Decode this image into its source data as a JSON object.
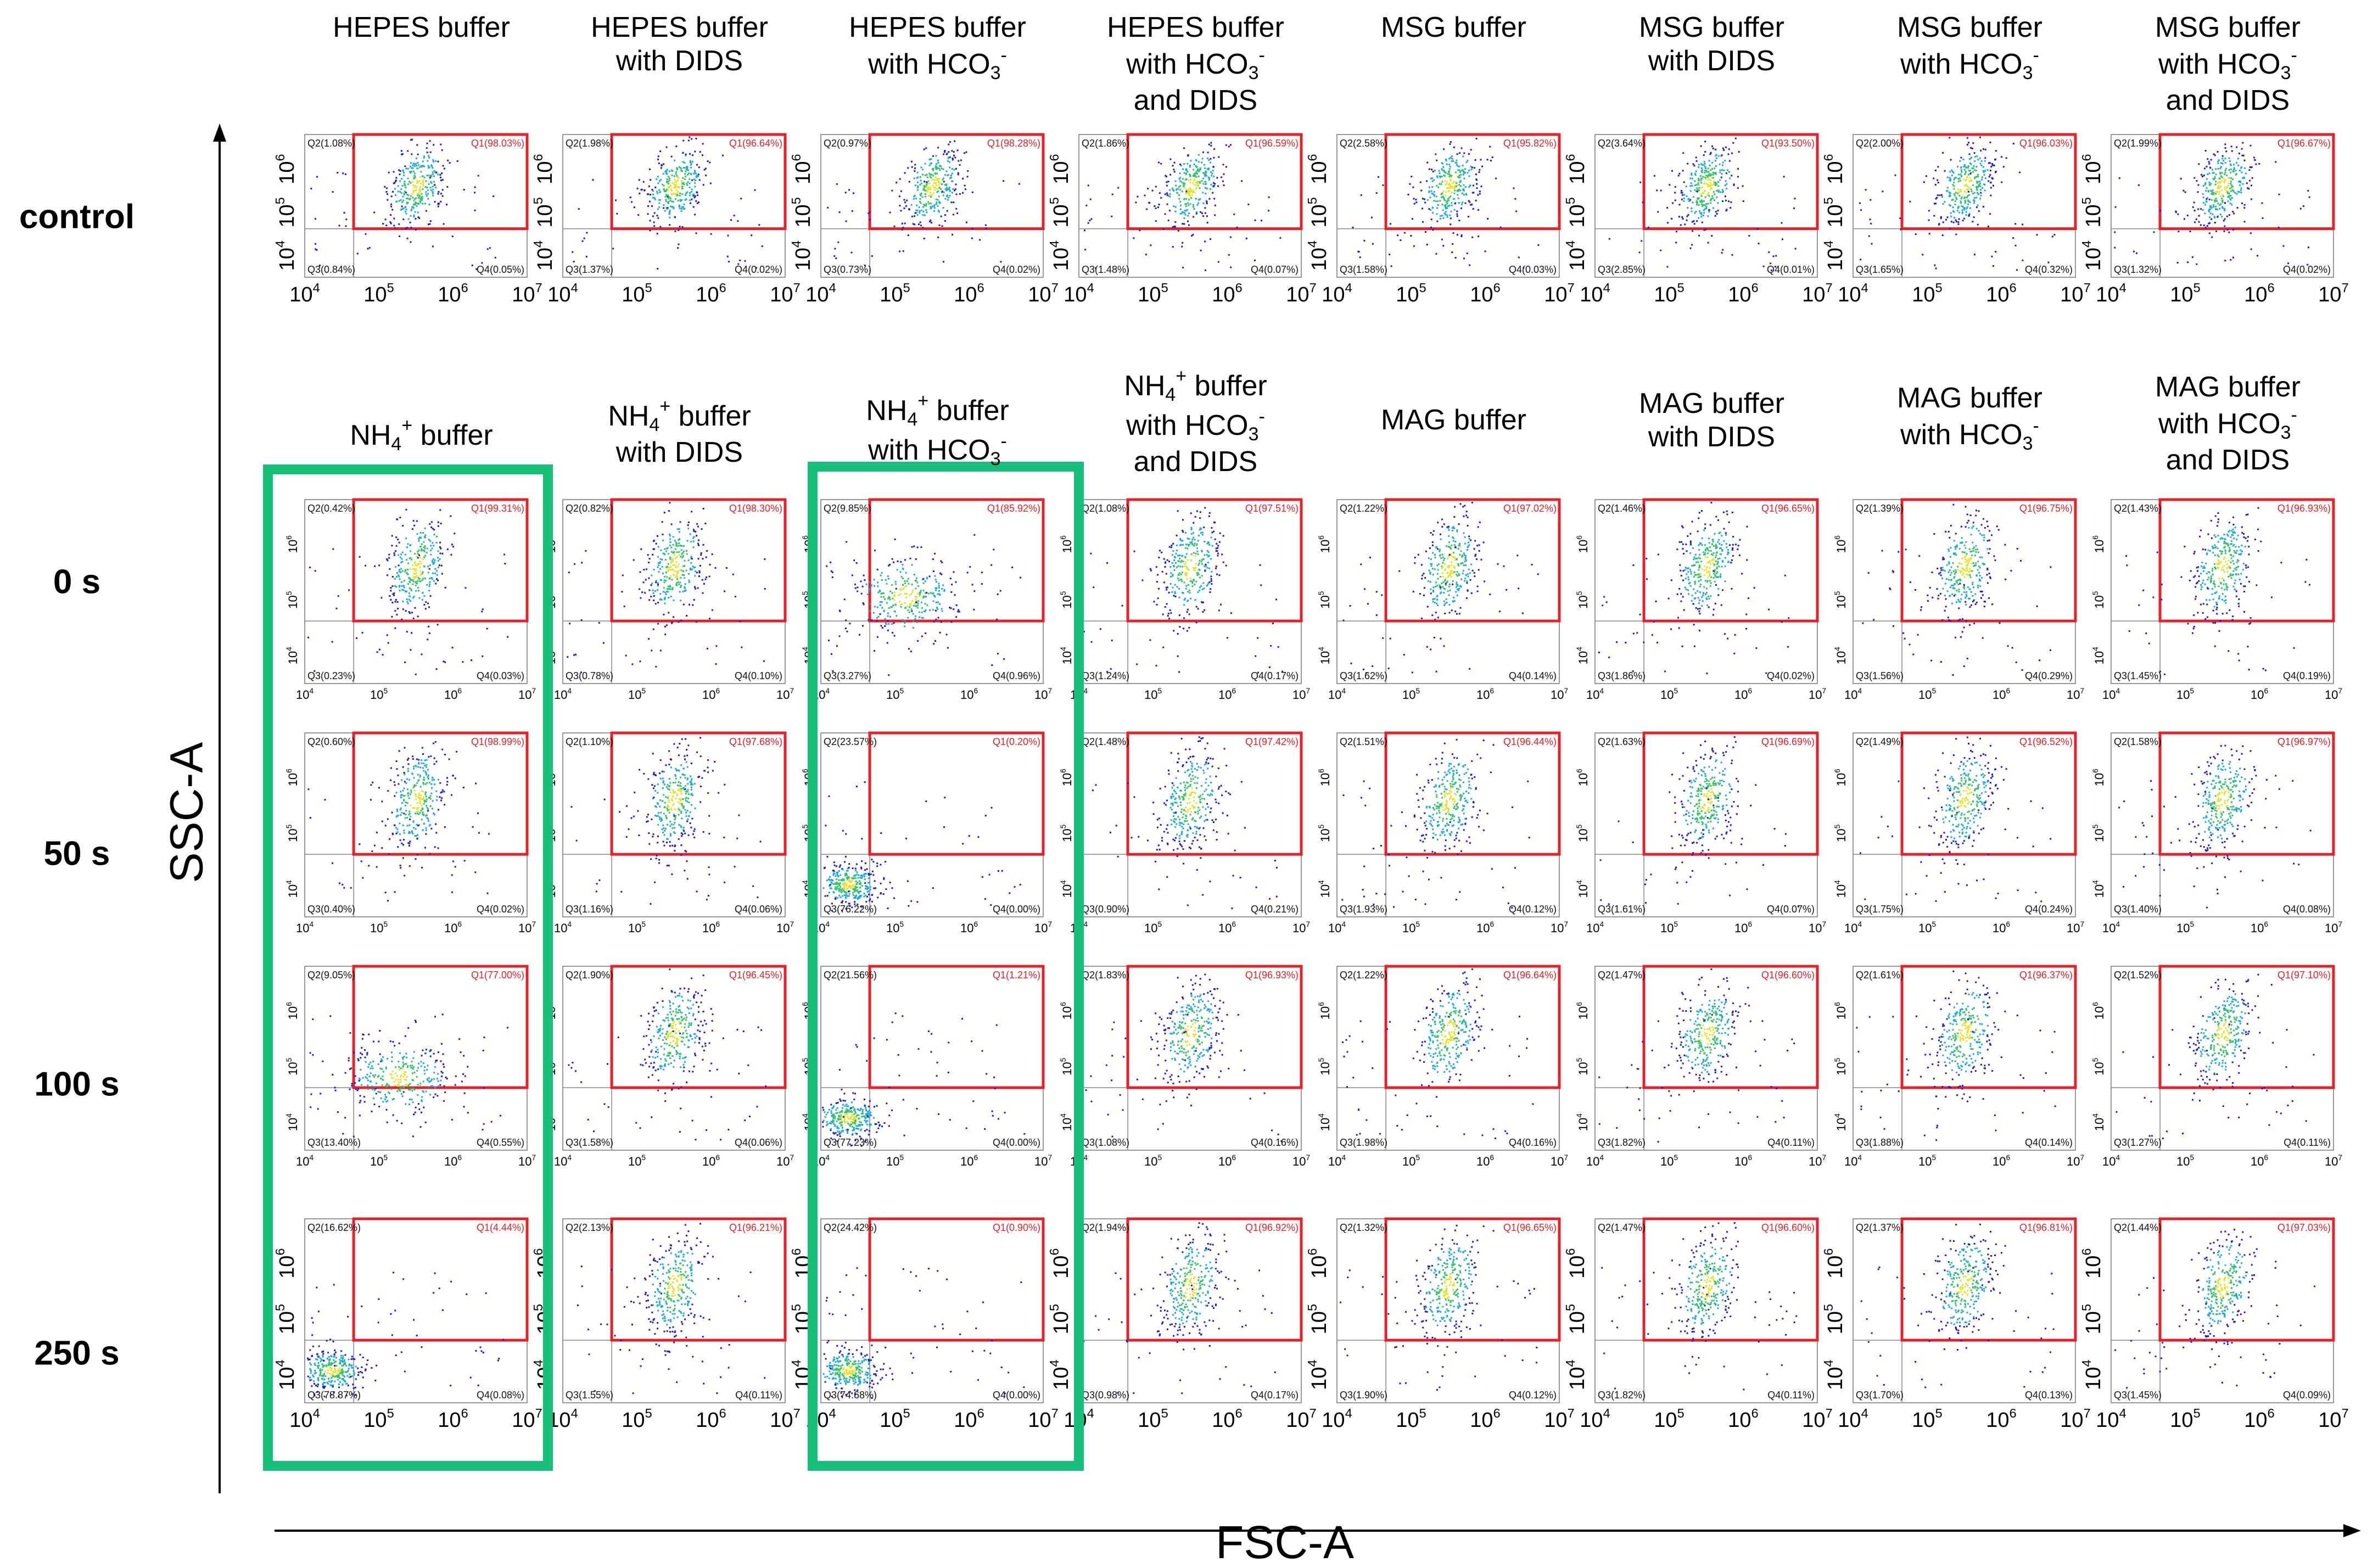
{
  "colors": {
    "gate": "#e8202a",
    "highlight": "#17c07a",
    "dot_low": "#1b1bd6",
    "dot_mid": "#1aa8e0",
    "dot_core": "#2ec26a",
    "dot_hot": "#e8e025"
  },
  "axes": {
    "y_label": "SSC-A",
    "x_label": "FSC-A"
  },
  "row_labels": [
    "control",
    "0 s",
    "50 s",
    "100 s",
    "250 s"
  ],
  "titles": {
    "top": [
      {
        "main": "HEPES buffer"
      },
      {
        "main": "HEPES buffer",
        "l2": "with DIDS"
      },
      {
        "main": "HEPES buffer",
        "l2": "with HCO",
        "l2sub": "3",
        "l2sup": "-"
      },
      {
        "main": "HEPES buffer",
        "l2": "with HCO",
        "l2sub": "3",
        "l2sup": "-",
        "l3": "and DIDS"
      },
      {
        "main": "MSG buffer"
      },
      {
        "main": "MSG buffer",
        "l2": "with DIDS"
      },
      {
        "main": "MSG buffer",
        "l2": "with HCO",
        "l2sub": "3",
        "l2sup": "-"
      },
      {
        "main": "MSG buffer",
        "l2": "with HCO",
        "l2sub": "3",
        "l2sup": "-",
        "l3": "and DIDS"
      }
    ],
    "mid": [
      {
        "pre": "NH",
        "sub": "4",
        "sup": "+",
        "post": " buffer"
      },
      {
        "pre": "NH",
        "sub": "4",
        "sup": "+",
        "post": " buffer",
        "l2": "with DIDS"
      },
      {
        "pre": "NH",
        "sub": "4",
        "sup": "+",
        "post": " buffer",
        "l2": "with HCO",
        "l2sub": "3",
        "l2sup": "-"
      },
      {
        "pre": "NH",
        "sub": "4",
        "sup": "+",
        "post": " buffer",
        "l2": "with HCO",
        "l2sub": "3",
        "l2sup": "-",
        "l3": "and DIDS"
      },
      {
        "main": "MAG buffer"
      },
      {
        "main": "MAG buffer",
        "l2": "with DIDS"
      },
      {
        "main": "MAG buffer",
        "l2": "with HCO",
        "l2sub": "3",
        "l2sup": "-"
      },
      {
        "main": "MAG buffer",
        "l2": "with HCO",
        "l2sub": "3",
        "l2sup": "-",
        "l3": "and DIDS"
      }
    ]
  },
  "chart_data": {
    "type": "scatter",
    "title": "",
    "xlabel": "FSC-A",
    "ylabel": "SSC-A",
    "xlim": [
      10000,
      10000000
    ],
    "ylim": [
      10000,
      10000000
    ],
    "x_ticks": [
      "10^4",
      "10^5",
      "10^6",
      "10^7"
    ],
    "y_ticks": [
      "10^4",
      "10^5",
      "10^6"
    ],
    "panels": [
      [
        {
          "q1": "Q1(98.03%)",
          "q2": "Q2(1.08%)",
          "q3": "Q3(0.84%)",
          "q4": "Q4(0.05%)",
          "type": "normal"
        },
        {
          "q1": "Q1(96.64%)",
          "q2": "Q2(1.98%)",
          "q3": "Q3(1.37%)",
          "q4": "Q4(0.02%)",
          "type": "normal"
        },
        {
          "q1": "Q1(98.28%)",
          "q2": "Q2(0.97%)",
          "q3": "Q3(0.73%)",
          "q4": "Q4(0.02%)",
          "type": "normal"
        },
        {
          "q1": "Q1(96.59%)",
          "q2": "Q2(1.86%)",
          "q3": "Q3(1.48%)",
          "q4": "Q4(0.07%)",
          "type": "normal"
        },
        {
          "q1": "Q1(95.82%)",
          "q2": "Q2(2.58%)",
          "q3": "Q3(1.58%)",
          "q4": "Q4(0.03%)",
          "type": "normal"
        },
        {
          "q1": "Q1(93.50%)",
          "q2": "Q2(3.64%)",
          "q3": "Q3(2.85%)",
          "q4": "Q4(0.01%)",
          "type": "normal"
        },
        {
          "q1": "Q1(96.03%)",
          "q2": "Q2(2.00%)",
          "q3": "Q3(1.65%)",
          "q4": "Q4(0.32%)",
          "type": "normal"
        },
        {
          "q1": "Q1(96.67%)",
          "q2": "Q2(1.99%)",
          "q3": "Q3(1.32%)",
          "q4": "Q4(0.02%)",
          "type": "normal"
        }
      ],
      [
        {
          "q1": "Q1(99.31%)",
          "q2": "Q2(0.42%)",
          "q3": "Q3(0.23%)",
          "q4": "Q4(0.03%)",
          "type": "normal"
        },
        {
          "q1": "Q1(98.30%)",
          "q2": "Q2(0.82%)",
          "q3": "Q3(0.78%)",
          "q4": "Q4(0.10%)",
          "type": "normal"
        },
        {
          "q1": "Q1(85.92%)",
          "q2": "Q2(9.85%)",
          "q3": "Q3(3.27%)",
          "q4": "Q4(0.96%)",
          "type": "shift1"
        },
        {
          "q1": "Q1(97.51%)",
          "q2": "Q2(1.08%)",
          "q3": "Q3(1.24%)",
          "q4": "Q4(0.17%)",
          "type": "normal"
        },
        {
          "q1": "Q1(97.02%)",
          "q2": "Q2(1.22%)",
          "q3": "Q3(1.62%)",
          "q4": "Q4(0.14%)",
          "type": "normal"
        },
        {
          "q1": "Q1(96.65%)",
          "q2": "Q2(1.46%)",
          "q3": "Q3(1.86%)",
          "q4": "Q4(0.02%)",
          "type": "normal"
        },
        {
          "q1": "Q1(96.75%)",
          "q2": "Q2(1.39%)",
          "q3": "Q3(1.56%)",
          "q4": "Q4(0.29%)",
          "type": "normal"
        },
        {
          "q1": "Q1(96.93%)",
          "q2": "Q2(1.43%)",
          "q3": "Q3(1.45%)",
          "q4": "Q4(0.19%)",
          "type": "normal"
        }
      ],
      [
        {
          "q1": "Q1(98.99%)",
          "q2": "Q2(0.60%)",
          "q3": "Q3(0.40%)",
          "q4": "Q4(0.02%)",
          "type": "normal"
        },
        {
          "q1": "Q1(97.68%)",
          "q2": "Q2(1.10%)",
          "q3": "Q3(1.16%)",
          "q4": "Q4(0.06%)",
          "type": "normal"
        },
        {
          "q1": "Q1(0.20%)",
          "q2": "Q2(23.57%)",
          "q3": "Q3(76.22%)",
          "q4": "Q4(0.00%)",
          "type": "low"
        },
        {
          "q1": "Q1(97.42%)",
          "q2": "Q2(1.48%)",
          "q3": "Q3(0.90%)",
          "q4": "Q4(0.21%)",
          "type": "normal"
        },
        {
          "q1": "Q1(96.44%)",
          "q2": "Q2(1.51%)",
          "q3": "Q3(1.93%)",
          "q4": "Q4(0.12%)",
          "type": "normal"
        },
        {
          "q1": "Q1(96.69%)",
          "q2": "Q2(1.63%)",
          "q3": "Q3(1.61%)",
          "q4": "Q4(0.07%)",
          "type": "normal"
        },
        {
          "q1": "Q1(96.52%)",
          "q2": "Q2(1.49%)",
          "q3": "Q3(1.75%)",
          "q4": "Q4(0.24%)",
          "type": "normal"
        },
        {
          "q1": "Q1(96.97%)",
          "q2": "Q2(1.58%)",
          "q3": "Q3(1.40%)",
          "q4": "Q4(0.08%)",
          "type": "normal"
        }
      ],
      [
        {
          "q1": "Q1(77.00%)",
          "q2": "Q2(9.05%)",
          "q3": "Q3(13.40%)",
          "q4": "Q4(0.55%)",
          "type": "shift2"
        },
        {
          "q1": "Q1(96.45%)",
          "q2": "Q2(1.90%)",
          "q3": "Q3(1.58%)",
          "q4": "Q4(0.06%)",
          "type": "normal"
        },
        {
          "q1": "Q1(1.21%)",
          "q2": "Q2(21.56%)",
          "q3": "Q3(77.23%)",
          "q4": "Q4(0.00%)",
          "type": "low"
        },
        {
          "q1": "Q1(96.93%)",
          "q2": "Q2(1.83%)",
          "q3": "Q3(1.08%)",
          "q4": "Q4(0.16%)",
          "type": "normal"
        },
        {
          "q1": "Q1(96.64%)",
          "q2": "Q2(1.22%)",
          "q3": "Q3(1.98%)",
          "q4": "Q4(0.16%)",
          "type": "normal"
        },
        {
          "q1": "Q1(96.60%)",
          "q2": "Q2(1.47%)",
          "q3": "Q3(1.82%)",
          "q4": "Q4(0.11%)",
          "type": "normal"
        },
        {
          "q1": "Q1(96.37%)",
          "q2": "Q2(1.61%)",
          "q3": "Q3(1.88%)",
          "q4": "Q4(0.14%)",
          "type": "normal"
        },
        {
          "q1": "Q1(97.10%)",
          "q2": "Q2(1.52%)",
          "q3": "Q3(1.27%)",
          "q4": "Q4(0.11%)",
          "type": "normal"
        }
      ],
      [
        {
          "q1": "Q1(4.44%)",
          "q2": "Q2(16.62%)",
          "q3": "Q3(78.87%)",
          "q4": "Q4(0.08%)",
          "type": "low"
        },
        {
          "q1": "Q1(96.21%)",
          "q2": "Q2(2.13%)",
          "q3": "Q3(1.55%)",
          "q4": "Q4(0.11%)",
          "type": "normal"
        },
        {
          "q1": "Q1(0.90%)",
          "q2": "Q2(24.42%)",
          "q3": "Q3(74.68%)",
          "q4": "Q4(0.00%)",
          "type": "low"
        },
        {
          "q1": "Q1(96.92%)",
          "q2": "Q2(1.94%)",
          "q3": "Q3(0.98%)",
          "q4": "Q4(0.17%)",
          "type": "normal"
        },
        {
          "q1": "Q1(96.65%)",
          "q2": "Q2(1.32%)",
          "q3": "Q3(1.90%)",
          "q4": "Q4(0.12%)",
          "type": "normal"
        },
        {
          "q1": "Q1(96.60%)",
          "q2": "Q2(1.47%)",
          "q3": "Q3(1.82%)",
          "q4": "Q4(0.11%)",
          "type": "normal"
        },
        {
          "q1": "Q1(96.81%)",
          "q2": "Q2(1.37%)",
          "q3": "Q3(1.70%)",
          "q4": "Q4(0.13%)",
          "type": "normal"
        },
        {
          "q1": "Q1(97.03%)",
          "q2": "Q2(1.44%)",
          "q3": "Q3(1.45%)",
          "q4": "Q4(0.09%)",
          "type": "normal"
        }
      ]
    ],
    "highlighted": [
      "NH4+ buffer",
      "NH4+ buffer with HCO3-"
    ]
  }
}
